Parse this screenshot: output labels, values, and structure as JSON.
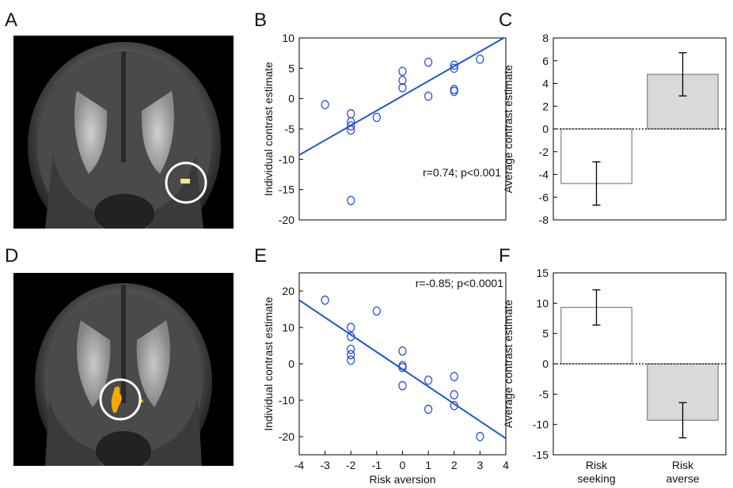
{
  "panels": {
    "a": "A",
    "b": "B",
    "c": "C",
    "d": "D",
    "e": "E",
    "f": "F"
  },
  "chart_data": [
    {
      "panel": "B",
      "type": "scatter",
      "xlabel": "",
      "ylabel": "Individual contrast estimate",
      "xlim": [
        -4,
        4
      ],
      "ylim": [
        -20,
        10
      ],
      "yticks": [
        10,
        5,
        0,
        -5,
        -10,
        -15,
        -20
      ],
      "points": [
        {
          "x": -3,
          "y": -1
        },
        {
          "x": -2,
          "y": -2.5
        },
        {
          "x": -2,
          "y": -3.8
        },
        {
          "x": -2,
          "y": -4.5
        },
        {
          "x": -2,
          "y": -5.2
        },
        {
          "x": -2,
          "y": -16.8
        },
        {
          "x": -1,
          "y": -3.1
        },
        {
          "x": 0,
          "y": 4.5
        },
        {
          "x": 0,
          "y": 3
        },
        {
          "x": 0,
          "y": 1.8
        },
        {
          "x": 1,
          "y": 6
        },
        {
          "x": 1,
          "y": 0.4
        },
        {
          "x": 2,
          "y": 5.5
        },
        {
          "x": 2,
          "y": 5
        },
        {
          "x": 2,
          "y": 1.5
        },
        {
          "x": 2,
          "y": 1.2
        },
        {
          "x": 3,
          "y": 6.5
        }
      ],
      "fit_line": {
        "x": [
          -4,
          4
        ],
        "y": [
          -9.3,
          10.2
        ]
      },
      "annotation": "r=0.74; p<0.001"
    },
    {
      "panel": "C",
      "type": "bar",
      "xlabel": "",
      "ylabel": "Average contrast estimate",
      "ylim": [
        -8,
        8
      ],
      "yticks": [
        8,
        6,
        4,
        2,
        0,
        -2,
        -4,
        -6,
        -8
      ],
      "categories": [
        "",
        ""
      ],
      "values": [
        -4.8,
        4.8
      ],
      "errors": [
        1.9,
        1.9
      ],
      "colors": [
        "#ffffff",
        "#d9d9d9"
      ]
    },
    {
      "panel": "E",
      "type": "scatter",
      "xlabel": "Risk aversion",
      "ylabel": "Individual contrast estimate",
      "xlim": [
        -4,
        4
      ],
      "ylim": [
        -25,
        25
      ],
      "xticks": [
        -4,
        -3,
        -2,
        -1,
        0,
        1,
        2,
        3,
        4
      ],
      "yticks": [
        20,
        10,
        0,
        -10,
        -20
      ],
      "points": [
        {
          "x": -3,
          "y": 17.5
        },
        {
          "x": -2,
          "y": 10
        },
        {
          "x": -2,
          "y": 7.5
        },
        {
          "x": -2,
          "y": 4
        },
        {
          "x": -2,
          "y": 2.5
        },
        {
          "x": -2,
          "y": 1
        },
        {
          "x": -1,
          "y": 14.5
        },
        {
          "x": 0,
          "y": 3.5
        },
        {
          "x": 0,
          "y": -0.5
        },
        {
          "x": 0,
          "y": -1
        },
        {
          "x": 0,
          "y": -6
        },
        {
          "x": 1,
          "y": -4.5
        },
        {
          "x": 1,
          "y": -12.5
        },
        {
          "x": 2,
          "y": -3.5
        },
        {
          "x": 2,
          "y": -8.5
        },
        {
          "x": 2,
          "y": -11.5
        },
        {
          "x": 3,
          "y": -20
        }
      ],
      "fit_line": {
        "x": [
          -4,
          4
        ],
        "y": [
          17.5,
          -20.5
        ]
      },
      "annotation": "r=-0.85; p<0.0001"
    },
    {
      "panel": "F",
      "type": "bar",
      "xlabel": "",
      "ylabel": "Average contrast estimate",
      "ylim": [
        -15,
        15
      ],
      "yticks": [
        15,
        10,
        5,
        0,
        -5,
        -10,
        -15
      ],
      "categories": [
        "Risk seeking",
        "Risk averse"
      ],
      "category_lines": [
        [
          "Risk",
          "seeking"
        ],
        [
          "Risk",
          "averse"
        ]
      ],
      "values": [
        9.3,
        -9.3
      ],
      "errors": [
        2.9,
        2.9
      ],
      "colors": [
        "#ffffff",
        "#d9d9d9"
      ]
    }
  ],
  "colors": {
    "marker": "#2b4fd8",
    "fit_line": "#1f56d6",
    "blob_a": "#ffe680",
    "blob_d": "#f7a800"
  }
}
